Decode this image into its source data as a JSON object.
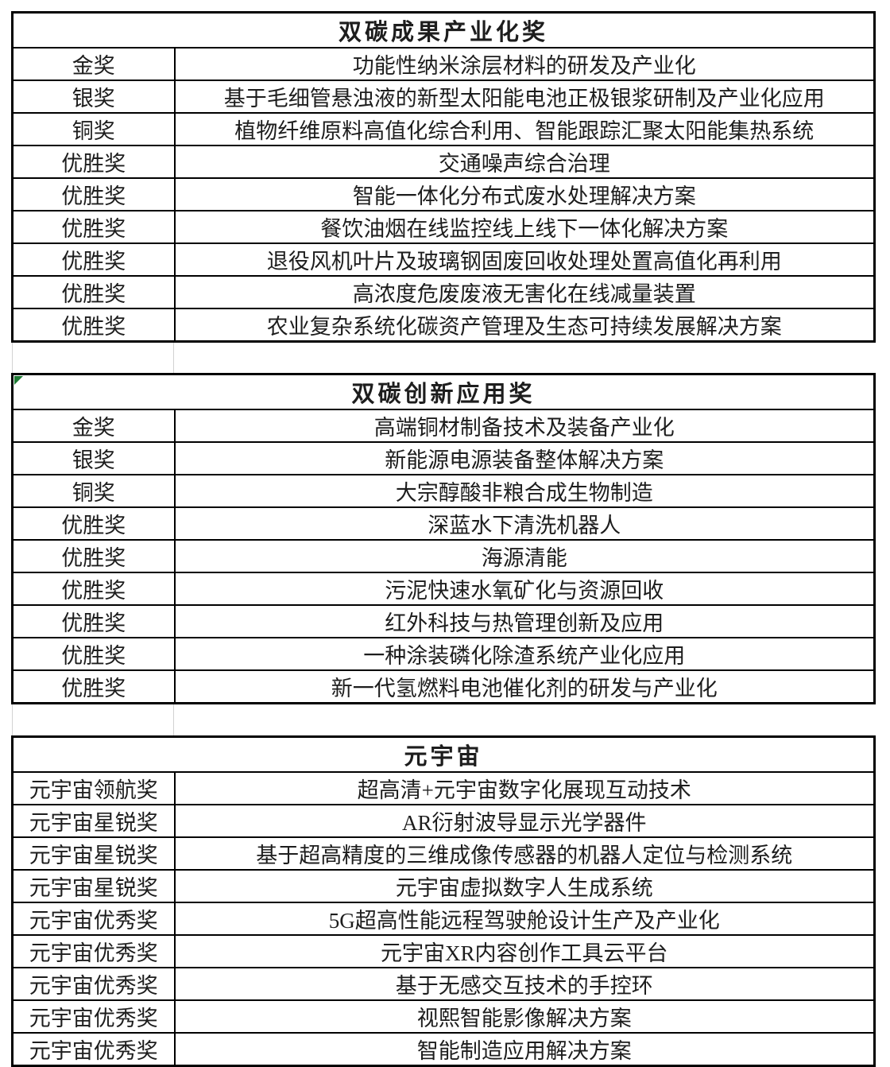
{
  "colors": {
    "border": "#000000",
    "text": "#1d1d1d",
    "background": "#ffffff",
    "error_indicator": "#1e7b34",
    "gridline_faint": "#d2d2d2"
  },
  "tables": [
    {
      "title": "双碳成果产业化奖",
      "rows": [
        {
          "award": "金奖",
          "project": "功能性纳米涂层材料的研发及产业化"
        },
        {
          "award": "银奖",
          "project": "基于毛细管悬浊液的新型太阳能电池正极银浆研制及产业化应用"
        },
        {
          "award": "铜奖",
          "project": "植物纤维原料高值化综合利用、智能跟踪汇聚太阳能集热系统"
        },
        {
          "award": "优胜奖",
          "project": "交通噪声综合治理"
        },
        {
          "award": "优胜奖",
          "project": "智能一体化分布式废水处理解决方案"
        },
        {
          "award": "优胜奖",
          "project": "餐饮油烟在线监控线上线下一体化解决方案"
        },
        {
          "award": "优胜奖",
          "project": "退役风机叶片及玻璃钢固废回收处理处置高值化再利用"
        },
        {
          "award": "优胜奖",
          "project": "高浓度危废废液无害化在线减量装置"
        },
        {
          "award": "优胜奖",
          "project": "农业复杂系统化碳资产管理及生态可持续发展解决方案"
        }
      ]
    },
    {
      "title": "双碳创新应用奖",
      "has_corner_indicator": true,
      "rows": [
        {
          "award": "金奖",
          "project": "高端铜材制备技术及装备产业化"
        },
        {
          "award": "银奖",
          "project": "新能源电源装备整体解决方案"
        },
        {
          "award": "铜奖",
          "project": "大宗醇酸非粮合成生物制造"
        },
        {
          "award": "优胜奖",
          "project": "深蓝水下清洗机器人"
        },
        {
          "award": "优胜奖",
          "project": "海源清能"
        },
        {
          "award": "优胜奖",
          "project": "污泥快速水氧矿化与资源回收"
        },
        {
          "award": "优胜奖",
          "project": "红外科技与热管理创新及应用"
        },
        {
          "award": "优胜奖",
          "project": "一种涂装磷化除渣系统产业化应用"
        },
        {
          "award": "优胜奖",
          "project": "新一代氢燃料电池催化剂的研发与产业化"
        }
      ]
    },
    {
      "title": "元宇宙",
      "rows": [
        {
          "award": "元宇宙领航奖",
          "project": "超高清+元宇宙数字化展现互动技术"
        },
        {
          "award": "元宇宙星锐奖",
          "project": "AR衍射波导显示光学器件"
        },
        {
          "award": "元宇宙星锐奖",
          "project": "基于超高精度的三维成像传感器的机器人定位与检测系统"
        },
        {
          "award": "元宇宙星锐奖",
          "project": "元宇宙虚拟数字人生成系统"
        },
        {
          "award": "元宇宙优秀奖",
          "project": "5G超高性能远程驾驶舱设计生产及产业化"
        },
        {
          "award": "元宇宙优秀奖",
          "project": "元宇宙XR内容创作工具云平台"
        },
        {
          "award": "元宇宙优秀奖",
          "project": "基于无感交互技术的手控环"
        },
        {
          "award": "元宇宙优秀奖",
          "project": "视熙智能影像解决方案"
        },
        {
          "award": "元宇宙优秀奖",
          "project": "智能制造应用解决方案"
        }
      ]
    }
  ]
}
